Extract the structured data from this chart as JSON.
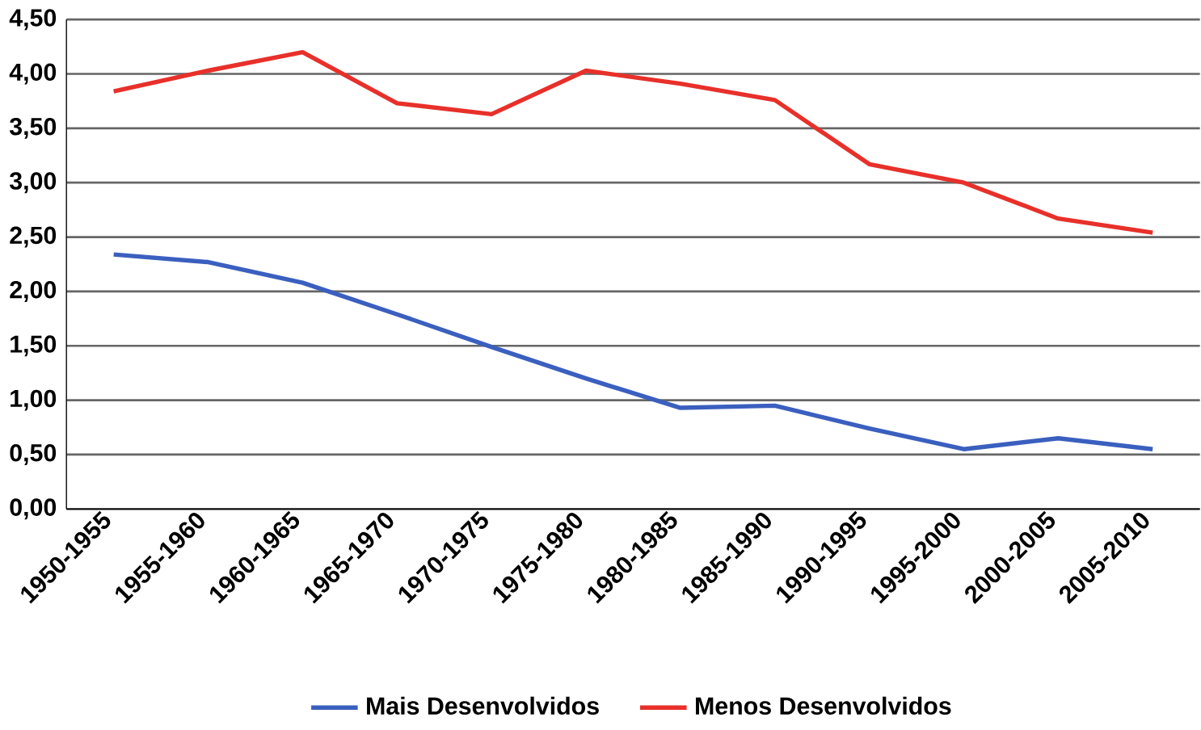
{
  "chart_data": {
    "type": "line",
    "categories": [
      "1950-1955",
      "1955-1960",
      "1960-1965",
      "1965-1970",
      "1970-1975",
      "1975-1980",
      "1980-1985",
      "1985-1990",
      "1990-1995",
      "1995-2000",
      "2000-2005",
      "2005-2010"
    ],
    "series": [
      {
        "name": "Mais Desenvolvidos",
        "color": "#3a5fbf",
        "values": [
          2.34,
          2.27,
          2.08,
          1.79,
          1.49,
          1.2,
          0.93,
          0.95,
          0.74,
          0.55,
          0.65,
          0.55
        ]
      },
      {
        "name": "Menos Desenvolvidos",
        "color": "#e8302a",
        "values": [
          3.84,
          4.03,
          4.2,
          3.73,
          3.63,
          4.03,
          3.91,
          3.76,
          3.17,
          3.0,
          2.67,
          2.54
        ]
      }
    ],
    "ylim": [
      0,
      4.5
    ],
    "yticks": [
      {
        "value": 0,
        "label": "0,00"
      },
      {
        "value": 0.5,
        "label": "0,50"
      },
      {
        "value": 1,
        "label": "1,00"
      },
      {
        "value": 1.5,
        "label": "1,50"
      },
      {
        "value": 2,
        "label": "2,00"
      },
      {
        "value": 2.5,
        "label": "2,50"
      },
      {
        "value": 3,
        "label": "3,00"
      },
      {
        "value": 3.5,
        "label": "3,50"
      },
      {
        "value": 4,
        "label": "4,00"
      },
      {
        "value": 4.5,
        "label": "4,50"
      }
    ],
    "grid": "y",
    "legend": "bottom",
    "marker": "none",
    "line_style": "solid"
  }
}
